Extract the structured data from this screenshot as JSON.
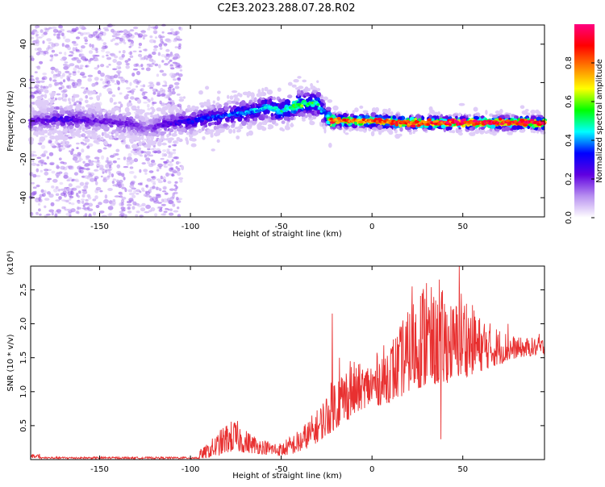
{
  "page": {
    "title": "C2E3.2023.288.07.28.R02"
  },
  "chart_data": [
    {
      "type": "heatmap",
      "title": "C2E3.2023.288.07.28.R02",
      "xlabel": "Height of straight line (km)",
      "ylabel": "Frequency (Hz)",
      "xlim": [
        -188,
        95
      ],
      "ylim": [
        -50,
        50
      ],
      "xticks": [
        -150,
        -100,
        -50,
        0,
        50
      ],
      "yticks": [
        -40,
        -20,
        0,
        20,
        40
      ],
      "colorbar": {
        "label": "Normalized spectral amplitude",
        "range": [
          0.0,
          1.0
        ],
        "ticks": [
          0.0,
          0.2,
          0.4,
          0.6,
          0.8
        ],
        "colors": [
          "#ffffff",
          "#b890f0",
          "#6000e0",
          "#0000ff",
          "#00ffff",
          "#00ff00",
          "#ffff00",
          "#ff8000",
          "#ff0000",
          "#ff0080"
        ]
      },
      "ridge": {
        "x": [
          -188,
          -170,
          -150,
          -130,
          -125,
          -110,
          -100,
          -80,
          -65,
          -58,
          -50,
          -40,
          -30,
          -25,
          -22,
          -10,
          0,
          20,
          50,
          95
        ],
        "y": [
          0,
          1,
          0,
          -2,
          -4,
          -1,
          0,
          3,
          5,
          7,
          5,
          9,
          9,
          2,
          0,
          0,
          0,
          -1,
          -1,
          -1
        ],
        "amplitude": [
          0.2,
          0.25,
          0.2,
          0.2,
          0.15,
          0.25,
          0.3,
          0.35,
          0.4,
          0.45,
          0.45,
          0.55,
          0.5,
          0.35,
          0.85,
          0.8,
          0.82,
          0.85,
          0.9,
          0.9
        ]
      },
      "grid": false
    },
    {
      "type": "line",
      "xlabel": "Height of straight line (km)",
      "ylabel": "SNR (10 * v/v)",
      "yscale_label": "(x10⁴)",
      "xlim": [
        -188,
        95
      ],
      "ylim": [
        0,
        2.85
      ],
      "xticks": [
        -150,
        -100,
        -50,
        0,
        50
      ],
      "yticks": [
        0.5,
        1.0,
        1.5,
        2.0,
        2.5
      ],
      "ytick_labels": [
        "0.5",
        "1.0",
        "1.5",
        "2.0",
        "2.5"
      ],
      "series": [
        {
          "color": "#e83030",
          "envelope": {
            "x": [
              -188,
              -150,
              -100,
              -92,
              -85,
              -80,
              -75,
              -70,
              -60,
              -50,
              -40,
              -30,
              -25,
              -20,
              -15,
              -10,
              -5,
              0,
              5,
              10,
              15,
              20,
              25,
              30,
              35,
              40,
              45,
              50,
              55,
              60,
              70,
              80,
              95
            ],
            "low": [
              0.0,
              0.0,
              0.0,
              0.02,
              0.05,
              0.1,
              0.12,
              0.1,
              0.08,
              0.05,
              0.1,
              0.25,
              0.35,
              0.45,
              0.55,
              0.65,
              0.75,
              0.8,
              0.8,
              0.85,
              0.9,
              1.0,
              1.05,
              1.05,
              1.1,
              1.1,
              1.2,
              1.2,
              1.25,
              1.3,
              1.4,
              1.5,
              1.55
            ],
            "high": [
              0.05,
              0.03,
              0.05,
              0.2,
              0.4,
              0.55,
              0.6,
              0.45,
              0.3,
              0.25,
              0.45,
              0.75,
              1.0,
              1.3,
              1.4,
              1.45,
              1.4,
              1.5,
              1.65,
              1.8,
              1.95,
              2.2,
              2.6,
              2.7,
              2.4,
              2.55,
              2.3,
              2.6,
              2.3,
              2.1,
              1.95,
              1.8,
              1.8
            ]
          },
          "peaks": [
            [
              -22,
              2.15
            ],
            [
              -18,
              1.5
            ],
            [
              -12,
              1.45
            ],
            [
              17,
              2.05
            ],
            [
              22,
              2.55
            ],
            [
              30,
              2.6
            ],
            [
              37,
              2.65
            ],
            [
              48,
              2.85
            ],
            [
              57,
              2.05
            ],
            [
              62,
              2.0
            ],
            [
              75,
              2.0
            ],
            [
              92,
              1.85
            ],
            [
              38,
              0.3
            ]
          ]
        }
      ],
      "grid": false
    }
  ]
}
